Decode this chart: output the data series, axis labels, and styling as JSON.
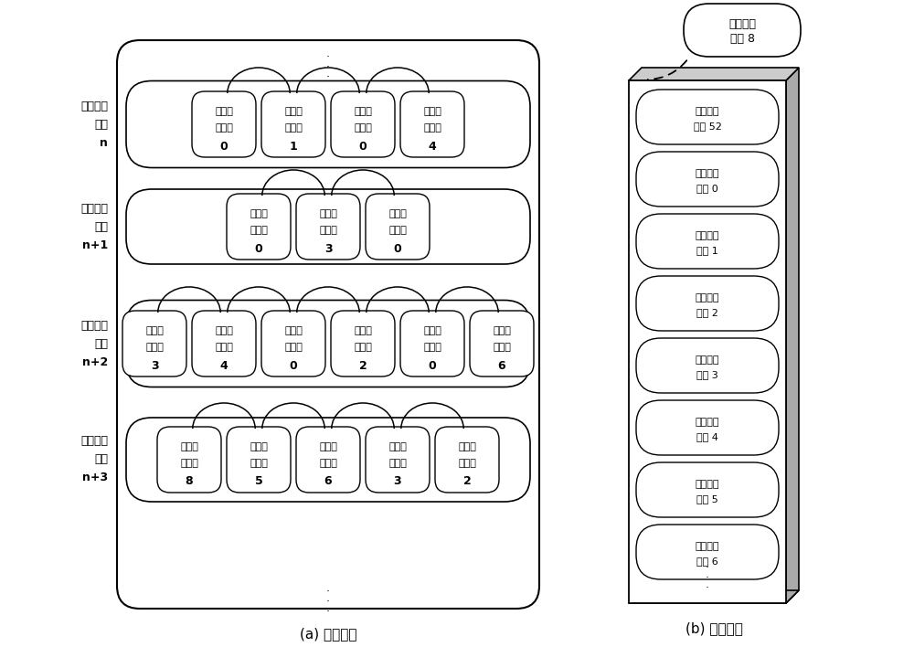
{
  "title_a": "(a) 逻辑视图",
  "title_b": "(b) 物理视图",
  "groups": [
    {
      "label_lines": [
        "配置信息",
        "群组",
        "n"
      ],
      "label_bold": [
        false,
        false,
        true
      ],
      "cores": [
        {
          "lines": [
            "配置信",
            "息内核",
            "0"
          ]
        },
        {
          "lines": [
            "配置信",
            "息内核",
            "1"
          ]
        },
        {
          "lines": [
            "配置信",
            "息内核",
            "0"
          ]
        },
        {
          "lines": [
            "配置信",
            "息内核",
            "4"
          ]
        }
      ]
    },
    {
      "label_lines": [
        "配置信息",
        "群组",
        "n+1"
      ],
      "label_bold": [
        false,
        false,
        true
      ],
      "cores": [
        {
          "lines": [
            "配置信",
            "息内核",
            "0"
          ]
        },
        {
          "lines": [
            "配置信",
            "息内核",
            "3"
          ]
        },
        {
          "lines": [
            "配置信",
            "息内核",
            "0"
          ]
        }
      ]
    },
    {
      "label_lines": [
        "配置信息",
        "群组",
        "n+2"
      ],
      "label_bold": [
        false,
        false,
        true
      ],
      "cores": [
        {
          "lines": [
            "配置信",
            "息内核",
            "3"
          ]
        },
        {
          "lines": [
            "配置信",
            "息内核",
            "4"
          ]
        },
        {
          "lines": [
            "配置信",
            "息内核",
            "0"
          ]
        },
        {
          "lines": [
            "配置信",
            "息内核",
            "2"
          ]
        },
        {
          "lines": [
            "配置信",
            "息内核",
            "0"
          ]
        },
        {
          "lines": [
            "配置信",
            "息内核",
            "6"
          ]
        }
      ]
    },
    {
      "label_lines": [
        "配置信息",
        "群组",
        "n+3"
      ],
      "label_bold": [
        false,
        false,
        true
      ],
      "cores": [
        {
          "lines": [
            "配置信",
            "息内核",
            "8"
          ]
        },
        {
          "lines": [
            "配置信",
            "息内核",
            "5"
          ]
        },
        {
          "lines": [
            "配置信",
            "息内核",
            "6"
          ]
        },
        {
          "lines": [
            "配置信",
            "息内核",
            "3"
          ]
        },
        {
          "lines": [
            "配置信",
            "息内核",
            "2"
          ]
        }
      ]
    }
  ],
  "phys_cores": [
    "配置信息\n内核 52",
    "配置信息\n内核 0",
    "配置信息\n内核 1",
    "配置信息\n内核 2",
    "配置信息\n内核 3",
    "配置信息\n内核 4",
    "配置信息\n内核 5",
    "配置信息\n内核 6"
  ],
  "phys_top": "配置信息\n内核 8",
  "bg_color": "#ffffff",
  "border_color": "#000000",
  "side_color": "#aaaaaa",
  "top_color": "#cccccc"
}
